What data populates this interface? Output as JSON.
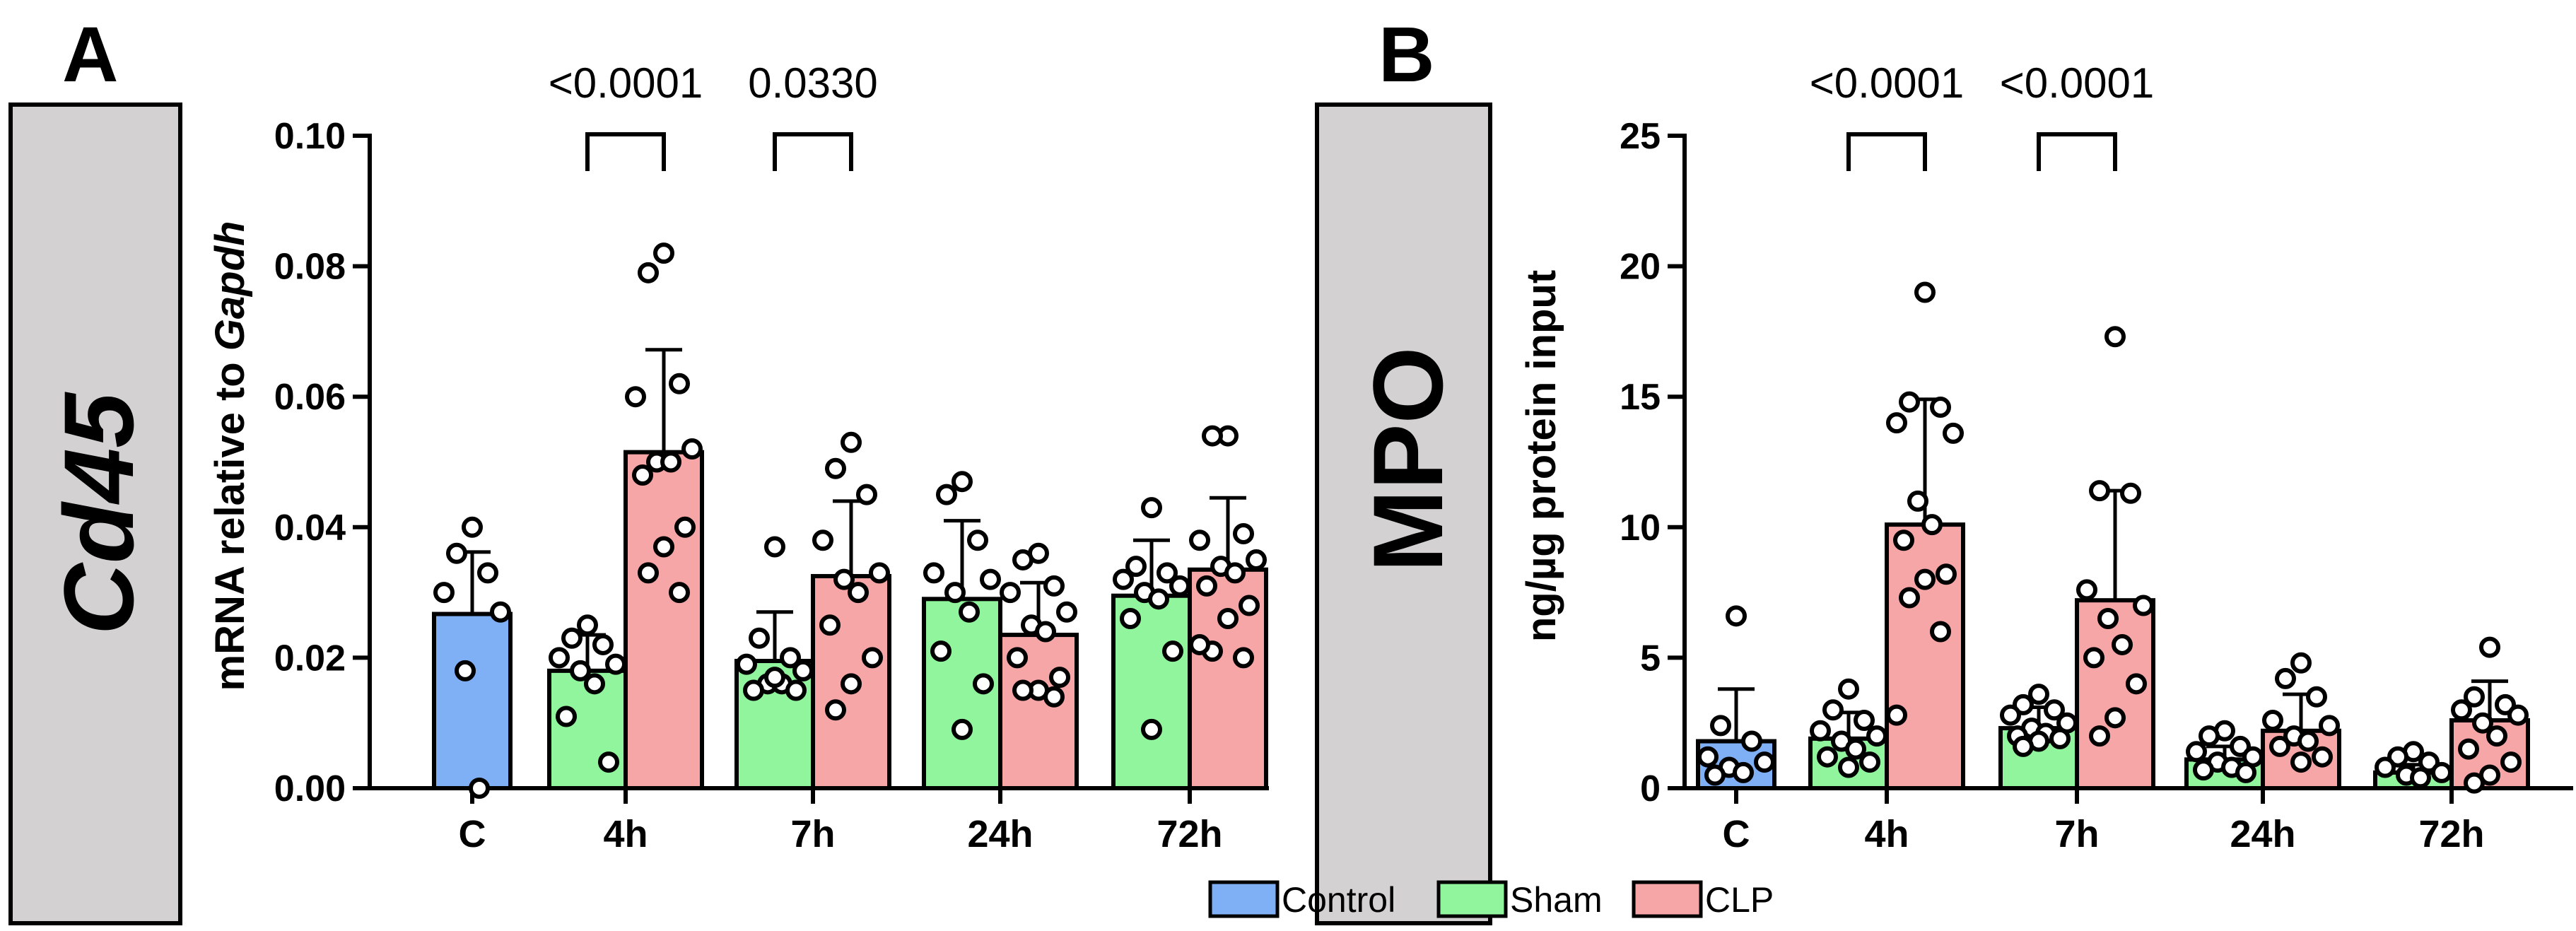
{
  "legend": [
    {
      "name": "Control",
      "color": "#7fb0f6"
    },
    {
      "name": "Sham",
      "color": "#90f59c"
    },
    {
      "name": "CLP",
      "color": "#f6a6a7"
    }
  ],
  "chart_data": [
    {
      "type": "bar",
      "panel_label": "A",
      "side_label": "Cd45",
      "ylabel_prefix": "mRNA relative to ",
      "ylabel_italic": "Gapdh",
      "categories": [
        "C",
        "4h",
        "7h",
        "24h",
        "72h"
      ],
      "ylim": [
        0,
        0.1
      ],
      "yticks": [
        0.0,
        0.02,
        0.04,
        0.06,
        0.08,
        0.1
      ],
      "ytick_labels": [
        "0.00",
        "0.02",
        "0.04",
        "0.06",
        "0.08",
        "0.10"
      ],
      "series": [
        {
          "name": "Control",
          "color": "#7fb0f6",
          "values": [
            0.0267,
            null,
            null,
            null,
            null
          ],
          "sd": [
            0.0095,
            null,
            null,
            null,
            null
          ],
          "points": [
            [
              0.04,
              0.036,
              0.033,
              0.03,
              0.027,
              0.018,
              0.0
            ],
            [],
            [],
            [],
            []
          ]
        },
        {
          "name": "Sham",
          "color": "#90f59c",
          "values": [
            null,
            0.018,
            0.0195,
            0.029,
            0.0295
          ],
          "sd": [
            null,
            0.0055,
            0.0075,
            0.012,
            0.0085
          ],
          "points": [
            [],
            [
              0.025,
              0.023,
              0.022,
              0.02,
              0.019,
              0.018,
              0.016,
              0.011,
              0.004
            ],
            [
              0.037,
              0.023,
              0.02,
              0.019,
              0.018,
              0.016,
              0.016,
              0.015,
              0.015,
              0.017
            ],
            [
              0.047,
              0.045,
              0.038,
              0.033,
              0.032,
              0.03,
              0.027,
              0.021,
              0.016,
              0.009
            ],
            [
              0.043,
              0.034,
              0.033,
              0.032,
              0.031,
              0.03,
              0.029,
              0.026,
              0.021,
              0.009
            ]
          ]
        },
        {
          "name": "CLP",
          "color": "#f6a6a7",
          "values": [
            null,
            0.0515,
            0.0325,
            0.0235,
            0.0335
          ],
          "sd": [
            null,
            0.0157,
            0.0115,
            0.008,
            0.011
          ],
          "points": [
            [],
            [
              0.082,
              0.079,
              0.062,
              0.06,
              0.052,
              0.05,
              0.05,
              0.048,
              0.04,
              0.037,
              0.033,
              0.03
            ],
            [
              0.053,
              0.049,
              0.045,
              0.038,
              0.033,
              0.032,
              0.03,
              0.025,
              0.02,
              0.016,
              0.012
            ],
            [
              0.036,
              0.035,
              0.031,
              0.03,
              0.027,
              0.025,
              0.024,
              0.02,
              0.017,
              0.015,
              0.015,
              0.014
            ],
            [
              0.054,
              0.054,
              0.039,
              0.038,
              0.035,
              0.034,
              0.033,
              0.031,
              0.028,
              0.026,
              0.021,
              0.02,
              0.022
            ]
          ]
        }
      ],
      "comparisons": [
        {
          "category": "4h",
          "label": "<0.0001"
        },
        {
          "category": "7h",
          "label": "0.0330"
        }
      ],
      "grid": false
    },
    {
      "type": "bar",
      "panel_label": "B",
      "side_label": "MPO",
      "ylabel_prefix": "ng/µg protein input",
      "ylabel_italic": "",
      "categories": [
        "C",
        "4h",
        "7h",
        "24h",
        "72h"
      ],
      "ylim": [
        0,
        25
      ],
      "yticks": [
        0,
        5,
        10,
        15,
        20,
        25
      ],
      "ytick_labels": [
        "0",
        "5",
        "10",
        "15",
        "20",
        "25"
      ],
      "series": [
        {
          "name": "Control",
          "color": "#7fb0f6",
          "values": [
            1.8,
            null,
            null,
            null,
            null
          ],
          "sd": [
            2.0,
            null,
            null,
            null,
            null
          ],
          "points": [
            [
              6.6,
              2.4,
              1.8,
              1.2,
              1.0,
              0.8,
              0.6,
              0.5
            ],
            [],
            [],
            [],
            []
          ]
        },
        {
          "name": "Sham",
          "color": "#90f59c",
          "values": [
            null,
            1.9,
            2.3,
            1.1,
            0.6
          ],
          "sd": [
            null,
            1.0,
            0.8,
            0.5,
            0.3
          ],
          "points": [
            [],
            [
              3.8,
              3.0,
              2.6,
              2.2,
              2.0,
              1.8,
              1.5,
              1.2,
              1.0,
              0.8
            ],
            [
              3.6,
              3.2,
              3.0,
              2.8,
              2.5,
              2.3,
              2.1,
              2.0,
              1.9,
              1.8,
              1.6
            ],
            [
              2.2,
              2.0,
              1.6,
              1.4,
              1.2,
              1.0,
              0.8,
              0.7,
              0.6
            ],
            [
              1.4,
              1.2,
              1.0,
              0.8,
              0.6,
              0.5,
              0.4
            ]
          ]
        },
        {
          "name": "CLP",
          "color": "#f6a6a7",
          "values": [
            null,
            10.1,
            7.2,
            2.2,
            2.6
          ],
          "sd": [
            null,
            4.8,
            4.2,
            1.4,
            1.5
          ],
          "points": [
            [],
            [
              19.0,
              14.8,
              14.6,
              14.0,
              13.6,
              11.0,
              10.1,
              9.5,
              8.2,
              8.0,
              7.3,
              6.0,
              2.8
            ],
            [
              17.3,
              11.4,
              11.3,
              7.6,
              7.0,
              6.5,
              5.5,
              5.0,
              4.0,
              2.7,
              2.0
            ],
            [
              4.8,
              4.2,
              3.5,
              2.6,
              2.4,
              2.0,
              1.8,
              1.6,
              1.2,
              1.0
            ],
            [
              5.4,
              3.5,
              3.2,
              3.0,
              2.8,
              2.5,
              2.0,
              1.5,
              1.0,
              0.5,
              0.2
            ]
          ]
        }
      ],
      "comparisons": [
        {
          "category": "4h",
          "label": "<0.0001"
        },
        {
          "category": "7h",
          "label": "<0.0001"
        }
      ],
      "grid": false
    }
  ]
}
